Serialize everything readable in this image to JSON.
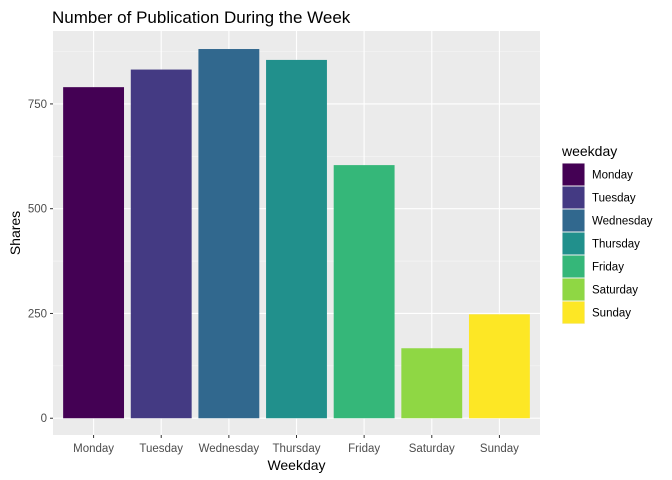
{
  "chart_data": {
    "type": "bar",
    "title": "Number of Publication During the Week",
    "xlabel": "Weekday",
    "ylabel": "Shares",
    "categories": [
      "Monday",
      "Tuesday",
      "Wednesday",
      "Thursday",
      "Friday",
      "Saturday",
      "Sunday"
    ],
    "values": [
      790,
      832,
      881,
      855,
      604,
      167,
      248
    ],
    "colors": [
      "#440154",
      "#443A83",
      "#31688E",
      "#21908C",
      "#35B779",
      "#8FD744",
      "#FDE725"
    ],
    "ylim": [
      -40,
      924
    ],
    "yticks": [
      0,
      250,
      500,
      750
    ],
    "grid": true,
    "background": "#EBEBEB",
    "legend": {
      "title": "weekday",
      "position": "right",
      "entries": [
        "Monday",
        "Tuesday",
        "Wednesday",
        "Thursday",
        "Friday",
        "Saturday",
        "Sunday"
      ]
    }
  }
}
